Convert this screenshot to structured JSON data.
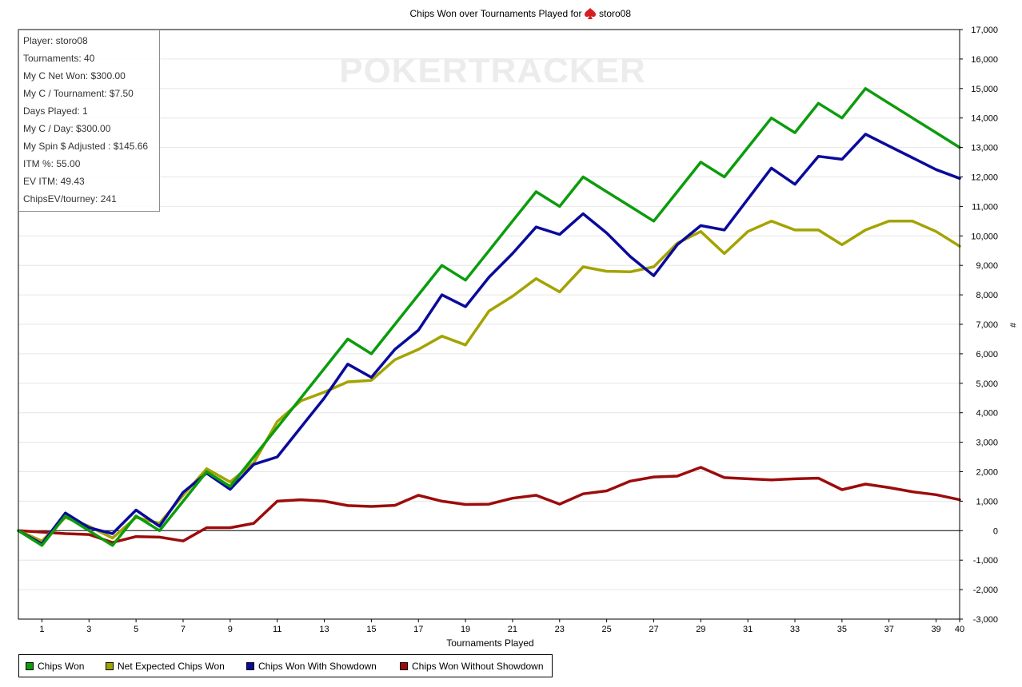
{
  "title": {
    "prefix": "Chips Won over Tournaments Played for",
    "icon": "spade-icon",
    "player": "storo08"
  },
  "watermark": "POKERTRACKER",
  "stats": [
    "Player: storo08",
    "Tournaments: 40",
    "My C Net Won: $300.00",
    "My C / Tournament: $7.50",
    "Days Played: 1",
    "My C / Day: $300.00",
    "My Spin $ Adjusted : $145.66",
    "ITM %: 55.00",
    "EV ITM: 49.43",
    "ChipsEV/tourney: 241"
  ],
  "chart_data": {
    "type": "line",
    "xlabel": "Tournaments Played",
    "ylabel": "#",
    "xlim": [
      0,
      40
    ],
    "ylim": [
      -3000,
      17000
    ],
    "x_ticks": [
      "1",
      "3",
      "5",
      "7",
      "9",
      "11",
      "13",
      "15",
      "17",
      "19",
      "21",
      "23",
      "25",
      "27",
      "29",
      "31",
      "33",
      "35",
      "37",
      "39",
      "40"
    ],
    "y_ticks": [
      "17,000",
      "16,000",
      "15,000",
      "14,000",
      "13,000",
      "12,000",
      "11,000",
      "10,000",
      "9,000",
      "8,000",
      "7,000",
      "6,000",
      "5,000",
      "4,000",
      "3,000",
      "2,000",
      "1,000",
      "0",
      "-1,000",
      "-2,000",
      "-3,000"
    ],
    "grid": true,
    "legend_position": "bottom",
    "x": [
      0,
      1,
      2,
      3,
      4,
      5,
      6,
      7,
      8,
      9,
      10,
      11,
      12,
      13,
      14,
      15,
      16,
      17,
      18,
      19,
      20,
      21,
      22,
      23,
      24,
      25,
      26,
      27,
      28,
      29,
      30,
      31,
      32,
      33,
      34,
      35,
      36,
      37,
      38,
      39,
      40
    ],
    "series": [
      {
        "name": "Chips Won",
        "color": "#0c9c0c",
        "values": [
          0,
          -500,
          500,
          0,
          -500,
          500,
          0,
          1000,
          2000,
          1500,
          2500,
          3500,
          4500,
          5500,
          6500,
          6000,
          7000,
          8000,
          9000,
          8500,
          9500,
          10500,
          11500,
          11000,
          12000,
          11500,
          11000,
          10500,
          11500,
          12500,
          12000,
          13000,
          14000,
          13500,
          14500,
          14000,
          15000,
          14500,
          14000,
          13500,
          13000
        ]
      },
      {
        "name": "Net Expected Chips Won",
        "color": "#a3a300",
        "values": [
          0,
          -350,
          450,
          150,
          -250,
          450,
          250,
          1200,
          2100,
          1650,
          2300,
          3700,
          4400,
          4700,
          5050,
          5100,
          5800,
          6150,
          6600,
          6300,
          7450,
          7950,
          8550,
          8100,
          8950,
          8800,
          8780,
          8950,
          9750,
          10150,
          9400,
          10150,
          10500,
          10200,
          10200,
          9700,
          10200,
          10500,
          10500,
          10150,
          9650
        ]
      },
      {
        "name": "Chips Won With Showdown",
        "color": "#0a0a9c",
        "values": [
          0,
          -450,
          600,
          100,
          -100,
          700,
          150,
          1300,
          1950,
          1400,
          2250,
          2500,
          3500,
          4500,
          5650,
          5200,
          6150,
          6800,
          8000,
          7600,
          8600,
          9400,
          10300,
          10050,
          10750,
          10100,
          9300,
          8650,
          9700,
          10350,
          10200,
          11250,
          12300,
          11750,
          12700,
          12600,
          13450,
          13050,
          12650,
          12250,
          11950
        ]
      },
      {
        "name": "Chips Won Without Showdown",
        "color": "#9c0c0c",
        "values": [
          0,
          -50,
          -100,
          -130,
          -400,
          -200,
          -220,
          -350,
          100,
          100,
          250,
          1000,
          1050,
          1000,
          850,
          820,
          860,
          1200,
          1000,
          890,
          900,
          1100,
          1200,
          900,
          1250,
          1350,
          1680,
          1820,
          1850,
          2150,
          1800,
          1760,
          1720,
          1760,
          1780,
          1390,
          1580,
          1460,
          1320,
          1220,
          1050
        ]
      }
    ]
  }
}
